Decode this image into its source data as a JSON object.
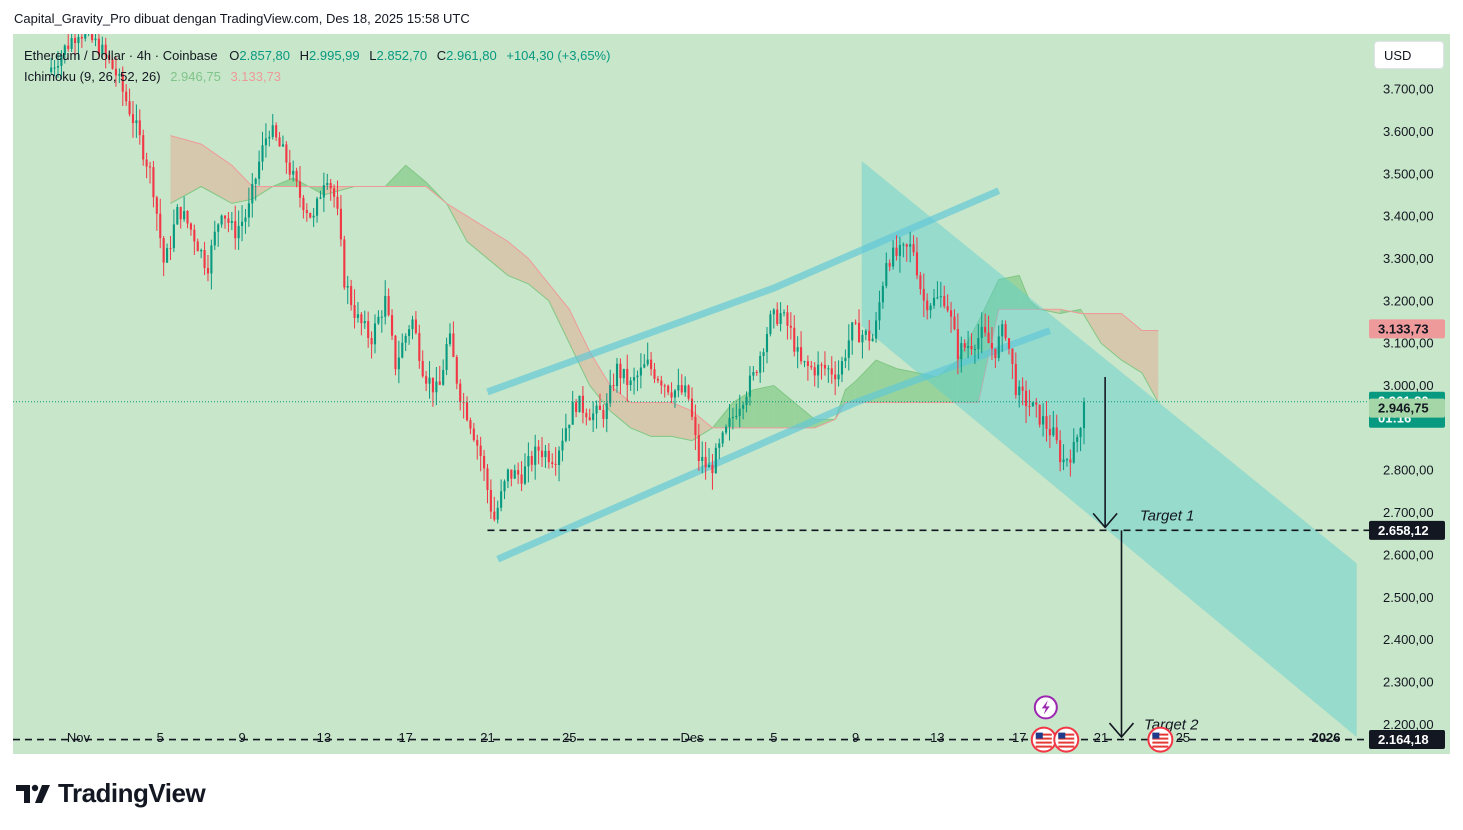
{
  "header": {
    "attribution": "Capital_Gravity_Pro dibuat dengan TradingView.com, Des 18, 2025 15:58 UTC"
  },
  "legend": {
    "symbol": "Ethereum / Dollar · 4h · Coinbase",
    "o_label": "O",
    "o_value": "2.857,80",
    "h_label": "H",
    "h_value": "2.995,99",
    "l_label": "L",
    "l_value": "2.852,70",
    "c_label": "C",
    "c_value": "2.961,80",
    "change": "+104,30 (+3,65%)",
    "indicator_name": "Ichimoku (9, 26, 52, 26)",
    "indicator_value_1": "2.946,75",
    "indicator_value_2": "3.133,73"
  },
  "currency_button": "USD",
  "branding": "TradingView",
  "chart_data": {
    "type": "candlestick",
    "symbol": "Ethereum / Dollar",
    "timeframe": "4h",
    "exchange": "Coinbase",
    "y_axis": {
      "ticks": [
        {
          "value": 3700,
          "label": "3.700,00"
        },
        {
          "value": 3600,
          "label": "3.600,00"
        },
        {
          "value": 3500,
          "label": "3.500,00"
        },
        {
          "value": 3400,
          "label": "3.400,00"
        },
        {
          "value": 3300,
          "label": "3.300,00"
        },
        {
          "value": 3200,
          "label": "3.200,00"
        },
        {
          "value": 3100,
          "label": "3.100,00"
        },
        {
          "value": 3000,
          "label": "3.000,00"
        },
        {
          "value": 2800,
          "label": "2.800,00"
        },
        {
          "value": 2700,
          "label": "2.700,00"
        },
        {
          "value": 2600,
          "label": "2.600,00"
        },
        {
          "value": 2500,
          "label": "2.500,00"
        },
        {
          "value": 2400,
          "label": "2.400,00"
        },
        {
          "value": 2300,
          "label": "2.300,00"
        },
        {
          "value": 2200,
          "label": "2.200,00"
        }
      ],
      "range": [
        2130,
        3830
      ]
    },
    "x_axis": {
      "ticks": [
        {
          "label": "Nov",
          "day": 0
        },
        {
          "label": "5",
          "day": 4
        },
        {
          "label": "9",
          "day": 8
        },
        {
          "label": "13",
          "day": 12
        },
        {
          "label": "17",
          "day": 16
        },
        {
          "label": "21",
          "day": 20
        },
        {
          "label": "25",
          "day": 24
        },
        {
          "label": "Des",
          "day": 30
        },
        {
          "label": "5",
          "day": 34
        },
        {
          "label": "9",
          "day": 38
        },
        {
          "label": "13",
          "day": 42
        },
        {
          "label": "17",
          "day": 46
        },
        {
          "label": "21",
          "day": 50
        },
        {
          "label": "25",
          "day": 54
        },
        {
          "label": "2026",
          "day": 61
        }
      ],
      "range": [
        -3.2,
        63.2
      ]
    },
    "price_labels": [
      {
        "value": 3133.73,
        "label": "3.133,73",
        "color": "#ef9a9a",
        "text_color": "#131722"
      },
      {
        "value": 2961.8,
        "label": "2.961,80",
        "sub": "01:16",
        "color": "#089981",
        "text_color": "#ffffff"
      },
      {
        "value": 2946.75,
        "label": "2.946,75",
        "color": "#a5d6a7",
        "text_color": "#131722"
      },
      {
        "value": 2658.12,
        "label": "2.658,12",
        "color": "#131722",
        "text_color": "#ffffff"
      },
      {
        "value": 2164.18,
        "label": "2.164,18",
        "color": "#131722",
        "text_color": "#ffffff"
      }
    ],
    "last_price": 2961.8,
    "targets": [
      {
        "name": "Target 1",
        "value": 2658.12,
        "start_day": 20.0
      },
      {
        "name": "Target 2",
        "value": 2164.18,
        "start_day": -3.2
      }
    ],
    "path": [
      [
        -1.5,
        3740
      ],
      [
        0.0,
        3840
      ],
      [
        1.0,
        3800
      ],
      [
        1.8,
        3740
      ],
      [
        2.6,
        3640
      ],
      [
        3.6,
        3490
      ],
      [
        4.2,
        3280
      ],
      [
        4.9,
        3420
      ],
      [
        5.6,
        3360
      ],
      [
        6.3,
        3280
      ],
      [
        7.0,
        3420
      ],
      [
        7.6,
        3360
      ],
      [
        8.3,
        3410
      ],
      [
        8.8,
        3520
      ],
      [
        9.3,
        3610
      ],
      [
        10.1,
        3540
      ],
      [
        10.8,
        3450
      ],
      [
        11.5,
        3390
      ],
      [
        12.1,
        3510
      ],
      [
        12.6,
        3430
      ],
      [
        13.0,
        3250
      ],
      [
        13.6,
        3160
      ],
      [
        14.3,
        3110
      ],
      [
        15.0,
        3200
      ],
      [
        15.5,
        3050
      ],
      [
        16.3,
        3160
      ],
      [
        16.9,
        3030
      ],
      [
        17.6,
        2980
      ],
      [
        18.1,
        3120
      ],
      [
        18.6,
        2990
      ],
      [
        19.2,
        2910
      ],
      [
        19.7,
        2830
      ],
      [
        20.3,
        2680
      ],
      [
        21.0,
        2790
      ],
      [
        21.7,
        2790
      ],
      [
        22.5,
        2850
      ],
      [
        23.3,
        2830
      ],
      [
        23.8,
        2900
      ],
      [
        24.3,
        2960
      ],
      [
        25.2,
        2930
      ],
      [
        25.8,
        2940
      ],
      [
        26.3,
        3040
      ],
      [
        27.0,
        3000
      ],
      [
        27.8,
        3050
      ],
      [
        28.4,
        3020
      ],
      [
        29.0,
        2990
      ],
      [
        29.8,
        2980
      ],
      [
        30.3,
        2830
      ],
      [
        30.9,
        2800
      ],
      [
        31.5,
        2870
      ],
      [
        32.2,
        2950
      ],
      [
        33.0,
        3020
      ],
      [
        33.8,
        3150
      ],
      [
        34.3,
        3170
      ],
      [
        34.8,
        3130
      ],
      [
        35.3,
        3050
      ],
      [
        35.8,
        3040
      ],
      [
        36.5,
        3040
      ],
      [
        37.2,
        3030
      ],
      [
        37.8,
        3130
      ],
      [
        38.4,
        3120
      ],
      [
        38.9,
        3110
      ],
      [
        39.5,
        3300
      ],
      [
        40.2,
        3310
      ],
      [
        40.8,
        3330
      ],
      [
        41.3,
        3200
      ],
      [
        41.9,
        3200
      ],
      [
        42.4,
        3210
      ],
      [
        43.0,
        3080
      ],
      [
        43.6,
        3100
      ],
      [
        44.2,
        3120
      ],
      [
        44.8,
        3080
      ],
      [
        45.3,
        3140
      ],
      [
        45.9,
        2980
      ],
      [
        46.4,
        2960
      ],
      [
        47.1,
        2920
      ],
      [
        47.7,
        2880
      ],
      [
        48.1,
        2820
      ],
      [
        48.7,
        2850
      ],
      [
        49.2,
        2962
      ]
    ],
    "volatility": 45,
    "ichimoku_cloud": {
      "span_a": [
        [
          4.5,
          3430
        ],
        [
          6.0,
          3470
        ],
        [
          7.5,
          3430
        ],
        [
          8.5,
          3440
        ],
        [
          9.5,
          3470
        ],
        [
          10.5,
          3490
        ],
        [
          12.0,
          3450
        ],
        [
          13.5,
          3470
        ],
        [
          15.0,
          3470
        ],
        [
          16.0,
          3520
        ],
        [
          17.0,
          3480
        ],
        [
          18.0,
          3430
        ],
        [
          19.0,
          3340
        ],
        [
          20.0,
          3300
        ],
        [
          21.0,
          3260
        ],
        [
          22.0,
          3240
        ],
        [
          23.0,
          3200
        ],
        [
          24.0,
          3100
        ],
        [
          25.0,
          3000
        ],
        [
          26.0,
          2940
        ],
        [
          27.0,
          2900
        ],
        [
          28.0,
          2880
        ],
        [
          29.0,
          2880
        ],
        [
          30.0,
          2870
        ],
        [
          31.0,
          2900
        ],
        [
          32.0,
          2960
        ],
        [
          33.0,
          2990
        ],
        [
          34.0,
          3000
        ],
        [
          35.0,
          2960
        ],
        [
          36.0,
          2920
        ],
        [
          37.0,
          2920
        ],
        [
          37.5,
          2990
        ],
        [
          38.0,
          3010
        ],
        [
          39.0,
          3060
        ],
        [
          40.0,
          3040
        ],
        [
          41.0,
          3030
        ],
        [
          42.0,
          3020
        ],
        [
          43.0,
          3060
        ],
        [
          44.0,
          3150
        ],
        [
          45.0,
          3250
        ],
        [
          46.0,
          3260
        ],
        [
          46.5,
          3200
        ],
        [
          47.0,
          3180
        ],
        [
          48.0,
          3170
        ],
        [
          49.0,
          3180
        ],
        [
          50.0,
          3100
        ],
        [
          51.0,
          3060
        ],
        [
          52.0,
          3030
        ],
        [
          52.8,
          2960
        ]
      ],
      "span_b": [
        [
          4.5,
          3590
        ],
        [
          6.0,
          3570
        ],
        [
          7.5,
          3520
        ],
        [
          8.5,
          3470
        ],
        [
          9.5,
          3470
        ],
        [
          10.5,
          3470
        ],
        [
          12.0,
          3470
        ],
        [
          13.5,
          3470
        ],
        [
          15.0,
          3470
        ],
        [
          16.0,
          3470
        ],
        [
          17.0,
          3470
        ],
        [
          18.0,
          3430
        ],
        [
          19.0,
          3400
        ],
        [
          20.0,
          3370
        ],
        [
          21.0,
          3340
        ],
        [
          22.0,
          3300
        ],
        [
          23.0,
          3240
        ],
        [
          24.0,
          3180
        ],
        [
          25.0,
          3080
        ],
        [
          26.0,
          3000
        ],
        [
          27.0,
          2960
        ],
        [
          28.0,
          2960
        ],
        [
          29.0,
          2960
        ],
        [
          30.0,
          2940
        ],
        [
          31.0,
          2900
        ],
        [
          32.0,
          2900
        ],
        [
          33.0,
          2900
        ],
        [
          34.0,
          2900
        ],
        [
          35.0,
          2900
        ],
        [
          36.0,
          2900
        ],
        [
          37.0,
          2920
        ],
        [
          37.5,
          2960
        ],
        [
          38.0,
          2960
        ],
        [
          39.0,
          2960
        ],
        [
          40.0,
          2960
        ],
        [
          41.0,
          2960
        ],
        [
          42.0,
          2960
        ],
        [
          43.0,
          2960
        ],
        [
          44.0,
          2960
        ],
        [
          45.0,
          3180
        ],
        [
          46.0,
          3180
        ],
        [
          46.5,
          3180
        ],
        [
          47.0,
          3180
        ],
        [
          48.0,
          3180
        ],
        [
          49.0,
          3170
        ],
        [
          50.0,
          3170
        ],
        [
          51.0,
          3170
        ],
        [
          52.0,
          3130
        ],
        [
          52.8,
          3130
        ]
      ],
      "bull_color": "#8fcf94",
      "bear_color": "#d8c2a8"
    },
    "drawings": {
      "rising_channel": {
        "upper": [
          [
            20.0,
            2985
          ],
          [
            34.0,
            3230
          ],
          [
            45.0,
            3460
          ]
        ],
        "lower": [
          [
            20.5,
            2590
          ],
          [
            38.0,
            2960
          ],
          [
            47.5,
            3130
          ]
        ],
        "color": "#5ec8d8"
      },
      "falling_channel": {
        "top": [
          [
            38.3,
            3530
          ],
          [
            62.5,
            2580
          ]
        ],
        "bottom": [
          [
            38.3,
            3140
          ],
          [
            62.5,
            2170
          ]
        ],
        "color": "#5ccfd0"
      },
      "arrow_1": {
        "day": 50.2,
        "from": 3020,
        "to": 2665
      },
      "arrow_2": {
        "day": 51.0,
        "from": 2658,
        "to": 2170
      }
    },
    "event_icons": [
      {
        "kind": "flash-event",
        "day": 47.3,
        "value": 2240
      },
      {
        "kind": "us-flag-event",
        "day": 47.2,
        "value": 2164
      },
      {
        "kind": "us-flag-event",
        "day": 48.3,
        "value": 2164
      },
      {
        "kind": "us-flag-event",
        "day": 52.9,
        "value": 2164
      }
    ],
    "colors": {
      "up": "#089981",
      "down": "#f23645",
      "background": "#c8e6c9",
      "axis_text": "#131722"
    }
  }
}
